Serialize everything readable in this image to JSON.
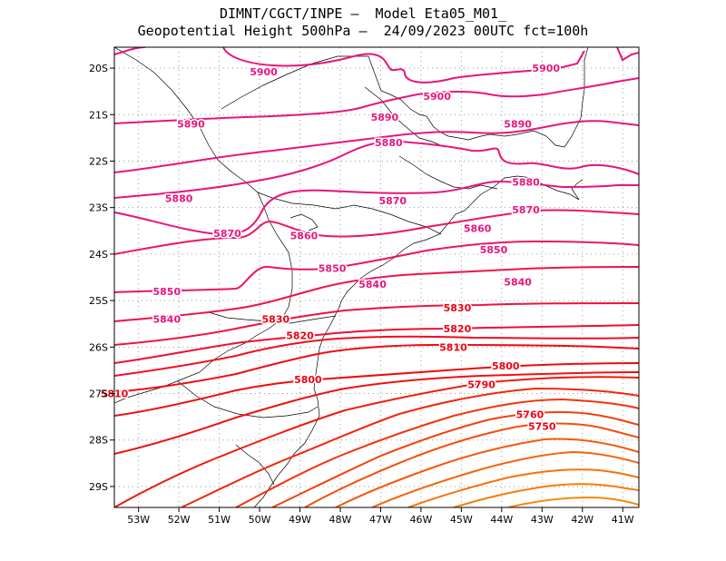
{
  "header": {
    "line1": "DIMNT/CGCT/INPE –  Model Eta05_M01_",
    "line2": "Geopotential Height 500hPa –  24/09/2023 00UTC fct=100h"
  },
  "axes": {
    "lon_min": -53.6,
    "lon_max": -40.6,
    "lat_min": -29.45,
    "lat_max": -19.55,
    "x_ticks": [
      "53W",
      "52W",
      "51W",
      "50W",
      "49W",
      "48W",
      "47W",
      "46W",
      "45W",
      "44W",
      "43W",
      "42W",
      "41W"
    ],
    "x_tick_values": [
      -53,
      -52,
      -51,
      -50,
      -49,
      -48,
      -47,
      -46,
      -45,
      -44,
      -43,
      -42,
      -41
    ],
    "y_ticks": [
      "20S",
      "21S",
      "22S",
      "23S",
      "24S",
      "25S",
      "26S",
      "27S",
      "28S",
      "29S"
    ],
    "y_tick_values": [
      -20,
      -21,
      -22,
      -23,
      -24,
      -25,
      -26,
      -27,
      -28,
      -29
    ],
    "grid": "dotted"
  },
  "contour_labels": [
    {
      "text": "5900",
      "lon": -49.9,
      "lat": -20.08
    },
    {
      "text": "5900",
      "lon": -45.6,
      "lat": -20.6
    },
    {
      "text": "5900",
      "lon": -42.9,
      "lat": -20.0
    },
    {
      "text": "5890",
      "lon": -51.7,
      "lat": -21.2
    },
    {
      "text": "5890",
      "lon": -46.9,
      "lat": -21.05
    },
    {
      "text": "5890",
      "lon": -43.6,
      "lat": -21.2
    },
    {
      "text": "5880",
      "lon": -46.8,
      "lat": -21.6
    },
    {
      "text": "5880",
      "lon": -52.0,
      "lat": -22.8
    },
    {
      "text": "5880",
      "lon": -43.4,
      "lat": -22.45
    },
    {
      "text": "5870",
      "lon": -46.7,
      "lat": -22.85
    },
    {
      "text": "5870",
      "lon": -43.4,
      "lat": -23.05
    },
    {
      "text": "5870",
      "lon": -50.8,
      "lat": -23.55
    },
    {
      "text": "5860",
      "lon": -48.9,
      "lat": -23.6
    },
    {
      "text": "5860",
      "lon": -44.6,
      "lat": -23.45
    },
    {
      "text": "5850",
      "lon": -44.2,
      "lat": -23.9
    },
    {
      "text": "5850",
      "lon": -48.2,
      "lat": -24.3
    },
    {
      "text": "5850",
      "lon": -52.3,
      "lat": -24.8
    },
    {
      "text": "5840",
      "lon": -47.2,
      "lat": -24.65
    },
    {
      "text": "5840",
      "lon": -43.6,
      "lat": -24.6
    },
    {
      "text": "5840",
      "lon": -52.3,
      "lat": -25.4
    },
    {
      "text": "5830",
      "lon": -45.1,
      "lat": -25.15
    },
    {
      "text": "5830",
      "lon": -49.6,
      "lat": -25.4
    },
    {
      "text": "5820",
      "lon": -45.1,
      "lat": -25.6
    },
    {
      "text": "5820",
      "lon": -49.0,
      "lat": -25.75
    },
    {
      "text": "5810",
      "lon": -45.2,
      "lat": -26.0
    },
    {
      "text": "5810",
      "lon": -53.6,
      "lat": -27.0
    },
    {
      "text": "5800",
      "lon": -48.8,
      "lat": -26.7
    },
    {
      "text": "5800",
      "lon": -43.9,
      "lat": -26.4
    },
    {
      "text": "5790",
      "lon": -44.5,
      "lat": -26.8
    },
    {
      "text": "5760",
      "lon": -43.3,
      "lat": -27.45
    },
    {
      "text": "5750",
      "lon": -43.0,
      "lat": -27.7
    }
  ],
  "colors": {
    "coast": "#000000",
    "grid": "#9a9a9a",
    "labels_high": "#e8157e",
    "labels_low": "#ee0010"
  }
}
